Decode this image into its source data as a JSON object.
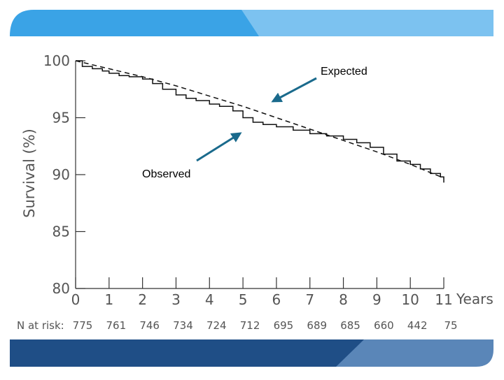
{
  "chart_data": {
    "type": "line",
    "x_unit_label": "Years",
    "ylabel": "Survival (%)",
    "xlim": [
      0,
      11
    ],
    "ylim": [
      80,
      100
    ],
    "x_ticks": [
      0,
      1,
      2,
      3,
      4,
      5,
      6,
      7,
      8,
      9,
      10,
      11
    ],
    "y_ticks": [
      80,
      85,
      90,
      95,
      100
    ],
    "grid": false,
    "legend": "none",
    "series": [
      {
        "name": "Observed",
        "style": "step",
        "x": [
          0,
          0.2,
          0.5,
          0.8,
          1.0,
          1.3,
          1.6,
          2.0,
          2.3,
          2.6,
          3.0,
          3.3,
          3.6,
          4.0,
          4.3,
          4.7,
          5.0,
          5.3,
          5.6,
          6.0,
          6.5,
          7.0,
          7.5,
          8.0,
          8.4,
          8.8,
          9.2,
          9.6,
          10.0,
          10.3,
          10.6,
          10.9,
          11.0
        ],
        "y": [
          100,
          99.5,
          99.3,
          99.1,
          98.9,
          98.7,
          98.6,
          98.4,
          98.0,
          97.5,
          97.0,
          96.7,
          96.5,
          96.2,
          96.0,
          95.6,
          95.0,
          94.6,
          94.4,
          94.2,
          93.9,
          93.6,
          93.4,
          93.1,
          92.8,
          92.4,
          91.8,
          91.2,
          90.9,
          90.5,
          90.1,
          89.8,
          89.3
        ]
      },
      {
        "name": "Expected",
        "style": "dashed",
        "x": [
          0,
          1,
          2,
          3,
          4,
          5,
          6,
          7,
          8,
          9,
          10,
          11
        ],
        "y": [
          100,
          99.3,
          98.6,
          97.8,
          96.9,
          96.0,
          95.0,
          94.0,
          93.0,
          92.0,
          90.9,
          89.7
        ]
      }
    ],
    "annotations": [
      "Expected",
      "Observed"
    ],
    "at_risk": {
      "label": "N at risk:",
      "values": [
        "775",
        "761",
        "746",
        "734",
        "724",
        "712",
        "695",
        "689",
        "685",
        "660",
        "442",
        "75"
      ]
    }
  },
  "colors": {
    "banner_top_main": "#3aa3e6",
    "banner_top_light": "#7cc2f0",
    "banner_bottom_main": "#1f4e86",
    "banner_bottom_light": "#5a86b8",
    "arrow": "#1a6a8c",
    "axis": "#333333",
    "text": "#555555"
  }
}
